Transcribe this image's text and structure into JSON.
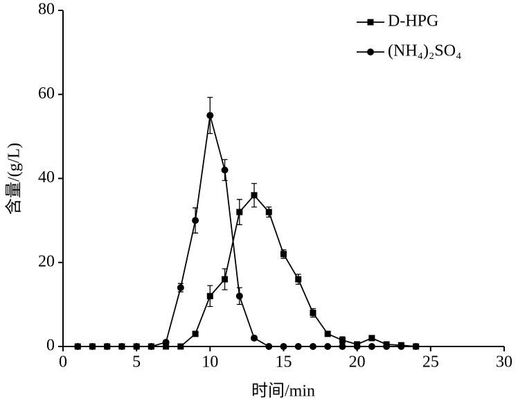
{
  "chart_data": {
    "type": "line",
    "x_label": "时间/min",
    "y_label": "含量/(g/L)",
    "x": [
      1,
      2,
      3,
      4,
      5,
      6,
      7,
      8,
      9,
      10,
      11,
      12,
      13,
      14,
      15,
      16,
      17,
      18,
      19,
      20,
      21,
      22,
      23,
      24
    ],
    "series": [
      {
        "name": "D-HPG",
        "color": "#000000",
        "marker": "square",
        "values": [
          0,
          0,
          0,
          0,
          0,
          0,
          0,
          0,
          3,
          12,
          16,
          32,
          36,
          32,
          22,
          16,
          8,
          3,
          1.5,
          0.5,
          2,
          0.5,
          0.3,
          0
        ],
        "errors": [
          0,
          0,
          0,
          0,
          0,
          0,
          0,
          0,
          0.5,
          2.5,
          2.5,
          3,
          2.8,
          1.2,
          1,
          1.2,
          1,
          0.5,
          0.8,
          0.3,
          0.5,
          0.3,
          0,
          0
        ]
      },
      {
        "name": "(NH₄)₂SO₄",
        "color": "#000000",
        "marker": "circle",
        "values": [
          0,
          0,
          0,
          0,
          0,
          0,
          1,
          14,
          30,
          55,
          42,
          12,
          2,
          0,
          0,
          0,
          0,
          0,
          0,
          0,
          0,
          0,
          0,
          0
        ],
        "errors": [
          0,
          0,
          0,
          0,
          0,
          0,
          0.3,
          1,
          3,
          4.3,
          2.5,
          2,
          0.5,
          0,
          0,
          0,
          0,
          0,
          0,
          0,
          0,
          0,
          0,
          0
        ]
      }
    ],
    "xlim": [
      0,
      30
    ],
    "xticks": [
      0,
      5,
      10,
      15,
      20,
      25,
      30
    ],
    "ylim": [
      0,
      80
    ],
    "yticks": [
      0,
      20,
      40,
      60,
      80
    ],
    "grid": false,
    "legend": "upper right"
  }
}
